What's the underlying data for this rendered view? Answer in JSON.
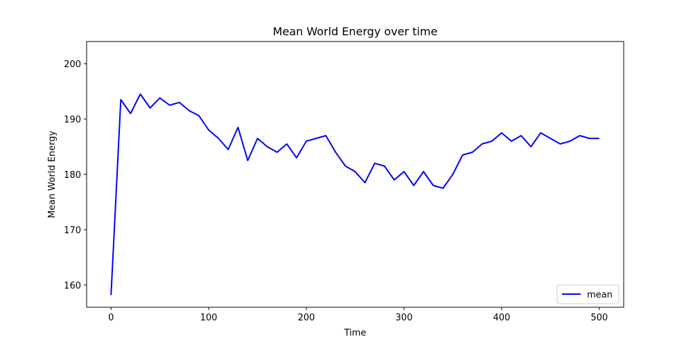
{
  "chart_data": {
    "type": "line",
    "title": "Mean World Energy over time",
    "xlabel": "Time",
    "ylabel": "Mean World Energy",
    "xlim": [
      -25,
      525
    ],
    "ylim": [
      156,
      204
    ],
    "xticks": [
      0,
      100,
      200,
      300,
      400,
      500
    ],
    "yticks": [
      160,
      170,
      180,
      190,
      200
    ],
    "grid": false,
    "legend_position": "lower right",
    "series": [
      {
        "name": "mean",
        "color": "#0000ff",
        "x_start": 0,
        "x_step": 10,
        "values": [
          158.2,
          193.5,
          191.0,
          194.5,
          192.0,
          193.8,
          192.5,
          193.0,
          191.5,
          190.6,
          188.0,
          186.5,
          184.5,
          188.5,
          182.5,
          186.5,
          185.0,
          184.0,
          185.5,
          183.0,
          186.0,
          186.5,
          187.0,
          184.0,
          181.5,
          180.5,
          178.5,
          182.0,
          181.5,
          179.0,
          180.5,
          178.0,
          180.5,
          178.0,
          177.5,
          180.0,
          183.5,
          184.0,
          185.5,
          186.0,
          187.5,
          186.0,
          187.0,
          185.0,
          187.5,
          186.5,
          185.5,
          186.0,
          187.0,
          186.5,
          186.5
        ]
      }
    ]
  }
}
